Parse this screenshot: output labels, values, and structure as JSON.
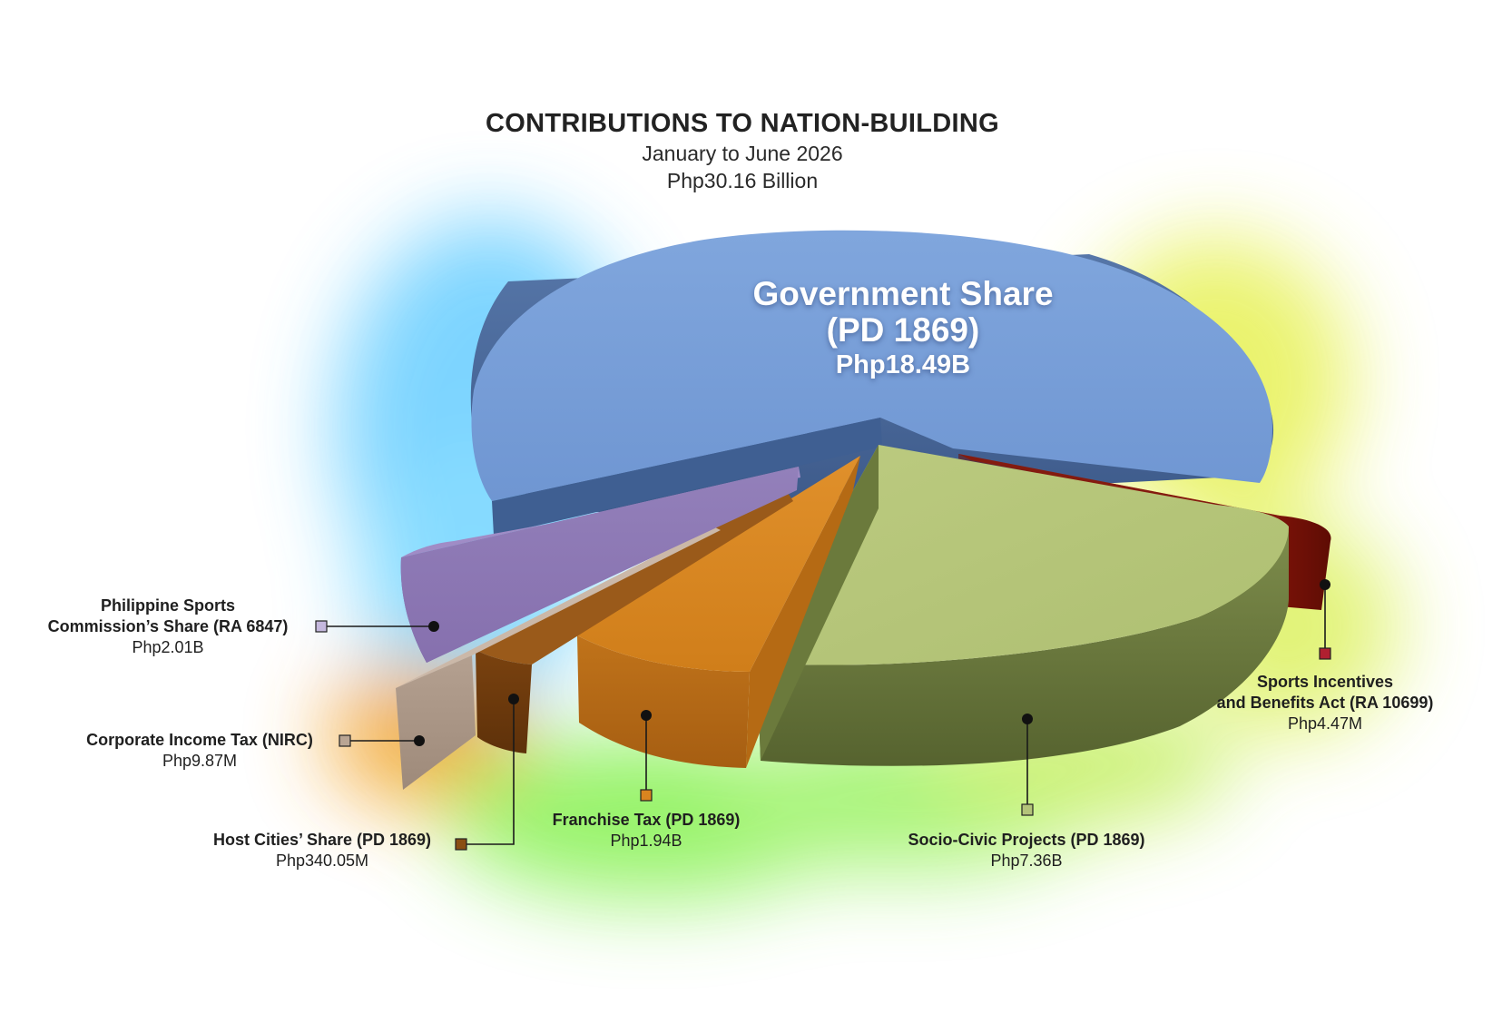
{
  "title": "CONTRIBUTIONS TO NATION-BUILDING",
  "subtitle": "January to June 2026",
  "total": "Php30.16 Billion",
  "colors": {
    "government_share": "#7aa0d8",
    "socio_civic": "#b4c47a",
    "sports_incentives": "#8e1a0e",
    "franchise_tax": "#d9841f",
    "host_cities": "#8a4e12",
    "corporate_income_tax": "#b9a594",
    "psc_share": "#8f79b4"
  },
  "chart_data": {
    "type": "pie",
    "title": "CONTRIBUTIONS TO NATION-BUILDING",
    "subtitle": "January to June 2026",
    "total": "Php30.16 Billion",
    "slices": [
      {
        "key": "government_share",
        "label": "Government Share (PD 1869)",
        "display_value": "Php18.49B",
        "value_php": 18490000000,
        "exploded": false
      },
      {
        "key": "sports_incentives",
        "label": "Sports Incentives and Benefits Act (RA 10699)",
        "display_value": "Php4.47M",
        "value_php": 4470000,
        "exploded": true
      },
      {
        "key": "socio_civic",
        "label": "Socio-Civic Projects (PD 1869)",
        "display_value": "Php7.36B",
        "value_php": 7360000000,
        "exploded": true
      },
      {
        "key": "franchise_tax",
        "label": "Franchise Tax (PD 1869)",
        "display_value": "Php1.94B",
        "value_php": 1940000000,
        "exploded": true
      },
      {
        "key": "host_cities",
        "label": "Host Cities’ Share (PD 1869)",
        "display_value": "Php340.05M",
        "value_php": 340050000,
        "exploded": true
      },
      {
        "key": "corporate_income_tax",
        "label": "Corporate Income Tax (NIRC)",
        "display_value": "Php9.87M",
        "value_php": 9870000,
        "exploded": true
      },
      {
        "key": "psc_share",
        "label": "Philippine Sports Commission’s Share (RA 6847)",
        "display_value": "Php2.01B",
        "value_php": 2010000000,
        "exploded": true
      }
    ],
    "style": "3d-exploded-pie",
    "legend": "callouts"
  },
  "callouts": {
    "government_share": {
      "name": "Government Share\n(PD 1869)",
      "value": "Php18.49B"
    },
    "psc_share": {
      "name": "Philippine Sports\nCommission’s Share (RA 6847)",
      "value": "Php2.01B"
    },
    "corporate_income_tax": {
      "name": "Corporate Income Tax (NIRC)",
      "value": "Php9.87M"
    },
    "host_cities": {
      "name": "Host Cities’ Share (PD 1869)",
      "value": "Php340.05M"
    },
    "franchise_tax": {
      "name": "Franchise Tax (PD 1869)",
      "value": "Php1.94B"
    },
    "socio_civic": {
      "name": "Socio-Civic Projects (PD 1869)",
      "value": "Php7.36B"
    },
    "sports_incentives": {
      "name": "Sports Incentives\nand Benefits Act (RA 10699)",
      "value": "Php4.47M"
    }
  }
}
